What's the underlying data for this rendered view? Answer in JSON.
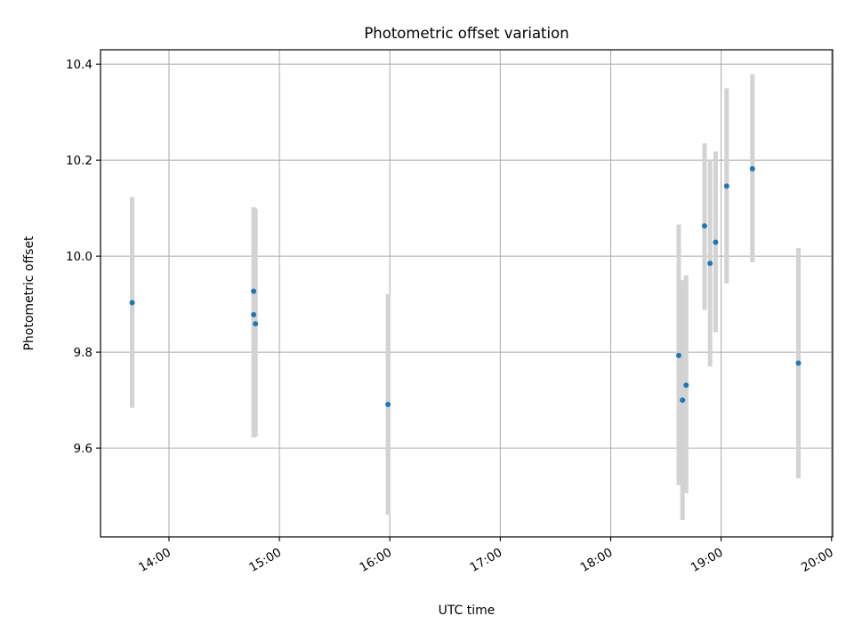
{
  "chart_data": {
    "type": "scatter",
    "title": "Photometric offset variation",
    "xlabel": "UTC time",
    "ylabel": "Photometric offset",
    "x_tick_labels": [
      "14:00",
      "15:00",
      "16:00",
      "17:00",
      "18:00",
      "19:00",
      "20:00"
    ],
    "x_tick_hours": [
      14,
      15,
      16,
      17,
      18,
      19,
      20
    ],
    "y_tick_labels": [
      "9.6",
      "9.8",
      "10.0",
      "10.2",
      "10.4"
    ],
    "y_tick_values": [
      9.6,
      9.8,
      10.0,
      10.2,
      10.4
    ],
    "xlim_hours": [
      13.38,
      20.01
    ],
    "ylim": [
      9.415,
      10.43
    ],
    "grid": true,
    "marker_color": "#1f77b4",
    "errorbar_color": "#d3d3d3",
    "points": [
      {
        "time": "13:40",
        "y": 9.903,
        "yerr_low": 0.219,
        "yerr_high": 0.22
      },
      {
        "time": "14:46",
        "y": 9.927,
        "yerr_low": 0.175,
        "yerr_high": 0.175
      },
      {
        "time": "14:46",
        "y": 9.878,
        "yerr_low": 0.256,
        "yerr_high": 0.223
      },
      {
        "time": "14:47",
        "y": 9.859,
        "yerr_low": 0.235,
        "yerr_high": 0.24
      },
      {
        "time": "15:59",
        "y": 9.691,
        "yerr_low": 0.23,
        "yerr_high": 0.23
      },
      {
        "time": "18:37",
        "y": 9.793,
        "yerr_low": 0.27,
        "yerr_high": 0.273
      },
      {
        "time": "18:39",
        "y": 9.7,
        "yerr_low": 0.25,
        "yerr_high": 0.25
      },
      {
        "time": "18:41",
        "y": 9.731,
        "yerr_low": 0.225,
        "yerr_high": 0.229
      },
      {
        "time": "18:51",
        "y": 10.063,
        "yerr_low": 0.175,
        "yerr_high": 0.172
      },
      {
        "time": "18:54",
        "y": 9.985,
        "yerr_low": 0.215,
        "yerr_high": 0.215
      },
      {
        "time": "18:57",
        "y": 10.029,
        "yerr_low": 0.188,
        "yerr_high": 0.189
      },
      {
        "time": "19:03",
        "y": 10.146,
        "yerr_low": 0.203,
        "yerr_high": 0.204
      },
      {
        "time": "19:17",
        "y": 10.182,
        "yerr_low": 0.195,
        "yerr_high": 0.197
      },
      {
        "time": "19:42",
        "y": 9.777,
        "yerr_low": 0.24,
        "yerr_high": 0.24
      }
    ]
  }
}
